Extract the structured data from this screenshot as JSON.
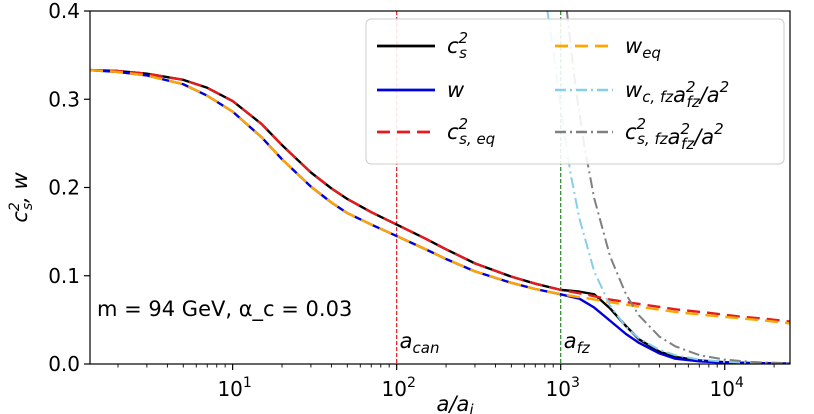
{
  "chart_data": {
    "type": "line",
    "title": "",
    "xlabel": "a/a_i",
    "ylabel": "c_s^2, w",
    "xscale": "log",
    "xlim": [
      1.35,
      25000
    ],
    "ylim": [
      0.0,
      0.4
    ],
    "yticks": [
      0.0,
      0.1,
      0.2,
      0.3,
      0.4
    ],
    "ytick_labels": [
      "0.0",
      "0.1",
      "0.2",
      "0.3",
      "0.4"
    ],
    "xticks": [
      10,
      100,
      1000,
      10000
    ],
    "xtick_bases": [
      "10",
      "10",
      "10",
      "10"
    ],
    "xtick_exps": [
      "1",
      "2",
      "3",
      "4"
    ],
    "annotation_text": "m = 94 GeV, α_c = 0.03",
    "vlines": [
      {
        "x": 100,
        "color": "#e41a1c",
        "label_base": "a",
        "label_sub": "can"
      },
      {
        "x": 1000,
        "color": "#228b22",
        "label_base": "a",
        "label_sub": "fz"
      }
    ],
    "legend": {
      "placement": "top-right",
      "columns": [
        [
          {
            "series": "cs2",
            "base": "c",
            "sup": "2",
            "sub": "s",
            "tail": ""
          },
          {
            "series": "w",
            "base": "w",
            "sup": "",
            "sub": "",
            "tail": ""
          },
          {
            "series": "cs2eq",
            "base": "c",
            "sup": "2",
            "sub": "s, eq",
            "tail": ""
          }
        ],
        [
          {
            "series": "weq",
            "base": "w",
            "sup": "",
            "sub": "eq",
            "tail": ""
          },
          {
            "series": "wcfz",
            "base": "w",
            "sup": "",
            "sub": "c, fz",
            "tail": "a",
            "tail_sup": "2",
            "tail_sub": "fz",
            "tail_end": "/a",
            "tail_end_sup": "2"
          },
          {
            "series": "csfz",
            "base": "c",
            "sup": "2",
            "sub": "s, fz",
            "tail": "a",
            "tail_sup": "2",
            "tail_sub": "fz",
            "tail_end": "/a",
            "tail_end_sup": "2"
          }
        ]
      ]
    },
    "series": [
      {
        "id": "cs2",
        "name": "c_s^2",
        "color": "#000000",
        "dash": "",
        "width": 2.4,
        "x": [
          1.35,
          2,
          3,
          5,
          7,
          10,
          15,
          20,
          30,
          40,
          50,
          70,
          100,
          150,
          200,
          300,
          500,
          700,
          1000,
          1300,
          1600,
          2000,
          2500,
          3000,
          4000,
          5000,
          7000,
          10000,
          15000,
          25000
        ],
        "y": [
          0.333,
          0.332,
          0.329,
          0.322,
          0.313,
          0.298,
          0.272,
          0.248,
          0.217,
          0.199,
          0.187,
          0.172,
          0.158,
          0.142,
          0.13,
          0.114,
          0.099,
          0.091,
          0.084,
          0.082,
          0.079,
          0.063,
          0.043,
          0.028,
          0.014,
          0.008,
          0.004,
          0.002,
          0.001,
          0.0005
        ]
      },
      {
        "id": "w",
        "name": "w",
        "color": "#0000dd",
        "dash": "",
        "width": 2.4,
        "x": [
          1.35,
          2,
          3,
          5,
          7,
          10,
          15,
          20,
          30,
          40,
          50,
          70,
          100,
          150,
          200,
          300,
          500,
          700,
          1000,
          1300,
          1600,
          2000,
          2500,
          3000,
          4000,
          5000,
          7000,
          10000,
          15000,
          25000
        ],
        "y": [
          0.333,
          0.331,
          0.327,
          0.317,
          0.304,
          0.286,
          0.257,
          0.232,
          0.201,
          0.183,
          0.171,
          0.158,
          0.145,
          0.13,
          0.119,
          0.105,
          0.092,
          0.085,
          0.079,
          0.074,
          0.064,
          0.049,
          0.034,
          0.024,
          0.012,
          0.006,
          0.003,
          0.0015,
          0.0008,
          0.0004
        ]
      },
      {
        "id": "cs2eq",
        "name": "c_s,eq^2",
        "color": "#e41a1c",
        "dash": "13 7",
        "width": 2.4,
        "x": [
          1.35,
          2,
          3,
          5,
          7,
          10,
          15,
          20,
          30,
          40,
          50,
          70,
          100,
          150,
          200,
          300,
          500,
          700,
          1000,
          1500,
          2000,
          3000,
          5000,
          8000,
          12000,
          18000,
          25000
        ],
        "y": [
          0.333,
          0.332,
          0.329,
          0.322,
          0.313,
          0.298,
          0.272,
          0.248,
          0.217,
          0.199,
          0.187,
          0.172,
          0.158,
          0.142,
          0.13,
          0.114,
          0.099,
          0.091,
          0.084,
          0.078,
          0.073,
          0.068,
          0.062,
          0.058,
          0.054,
          0.051,
          0.048
        ]
      },
      {
        "id": "weq",
        "name": "w_eq",
        "color": "#ffa500",
        "dash": "13 7",
        "width": 2.4,
        "x": [
          1.35,
          2,
          3,
          5,
          7,
          10,
          15,
          20,
          30,
          40,
          50,
          70,
          100,
          150,
          200,
          300,
          500,
          700,
          1000,
          1500,
          2000,
          3000,
          5000,
          8000,
          12000,
          18000,
          25000
        ],
        "y": [
          0.333,
          0.331,
          0.327,
          0.317,
          0.304,
          0.286,
          0.257,
          0.232,
          0.201,
          0.183,
          0.171,
          0.158,
          0.145,
          0.13,
          0.119,
          0.105,
          0.092,
          0.085,
          0.079,
          0.074,
          0.07,
          0.065,
          0.059,
          0.055,
          0.052,
          0.049,
          0.046
        ]
      },
      {
        "id": "wcfz",
        "name": "w_c,fz a_fz^2/a^2",
        "color": "#87ceeb",
        "dash": "11 4 2 4",
        "width": 2.0,
        "x": [
          830,
          900,
          1000,
          1150,
          1300,
          1600,
          2000,
          2500,
          3000,
          4000,
          5000,
          7000,
          10000,
          15000,
          25000
        ],
        "y": [
          0.4,
          0.355,
          0.29,
          0.215,
          0.165,
          0.105,
          0.066,
          0.042,
          0.029,
          0.016,
          0.01,
          0.005,
          0.0025,
          0.0011,
          0.0004
        ]
      },
      {
        "id": "csfz",
        "name": "c_s,fz^2 a_fz^2/a^2",
        "color": "#808080",
        "dash": "11 4 2 4",
        "width": 2.0,
        "x": [
          1090,
          1150,
          1250,
          1400,
          1600,
          2000,
          2500,
          3000,
          4000,
          5000,
          7000,
          10000,
          15000,
          25000
        ],
        "y": [
          0.4,
          0.36,
          0.305,
          0.245,
          0.188,
          0.122,
          0.079,
          0.055,
          0.031,
          0.02,
          0.01,
          0.005,
          0.0022,
          0.0008
        ]
      }
    ]
  }
}
